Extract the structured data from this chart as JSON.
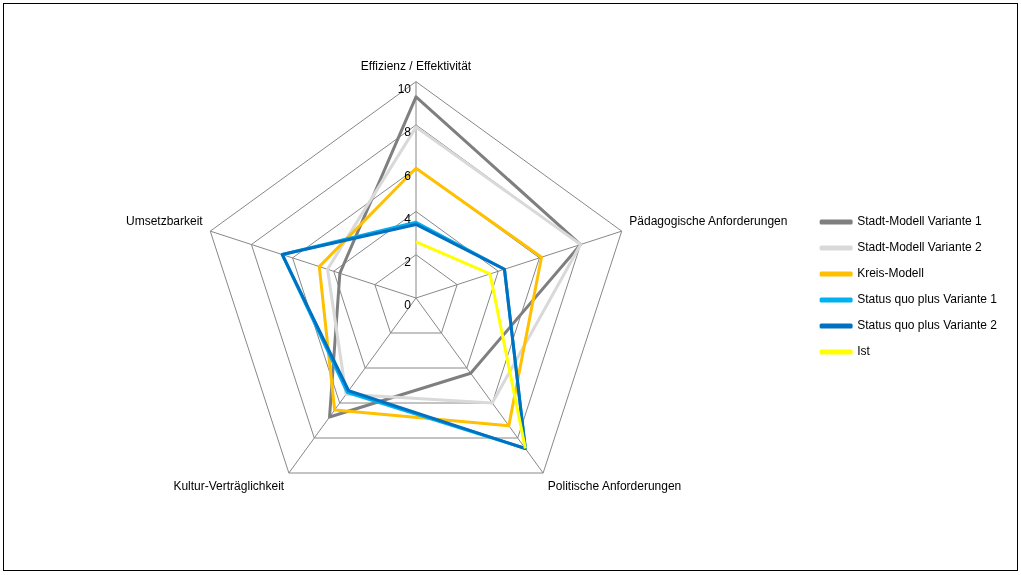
{
  "chart_data": {
    "type": "radar",
    "categories": [
      "Effizienz / Effektivität",
      "Pädagogische Anforderungen",
      "Politische Anforderungen",
      "Kultur-Verträglichkeit",
      "Umsetzbarkeit"
    ],
    "series": [
      {
        "name": "Stadt-Modell Variante 1",
        "color": "#7f7f7f",
        "values": [
          9.3,
          8,
          4.3,
          6.8,
          3.7
        ]
      },
      {
        "name": "Stadt-Modell Variante 2",
        "color": "#d9d9d9",
        "values": [
          7.9,
          8,
          6,
          5.5,
          4.3
        ]
      },
      {
        "name": "Kreis-Modell",
        "color": "#ffc000",
        "values": [
          6,
          6.1,
          7.3,
          6.4,
          4.7
        ]
      },
      {
        "name": "Status quo plus Variante 1",
        "color": "#00b0f0",
        "values": [
          3.5,
          4.3,
          8.6,
          5.4,
          6.5
        ]
      },
      {
        "name": "Status quo plus Variante 2",
        "color": "#0070c0",
        "values": [
          3.4,
          4.3,
          8.6,
          5.3,
          6.5
        ]
      },
      {
        "name": "Ist",
        "color": "#ffff00",
        "values": [
          2.6,
          3.6,
          8.6,
          null,
          null
        ]
      }
    ],
    "ylim": [
      0,
      10
    ],
    "yticks": [
      0,
      2,
      4,
      6,
      8,
      10
    ],
    "grid": true,
    "legend": "right",
    "marker": "none"
  }
}
